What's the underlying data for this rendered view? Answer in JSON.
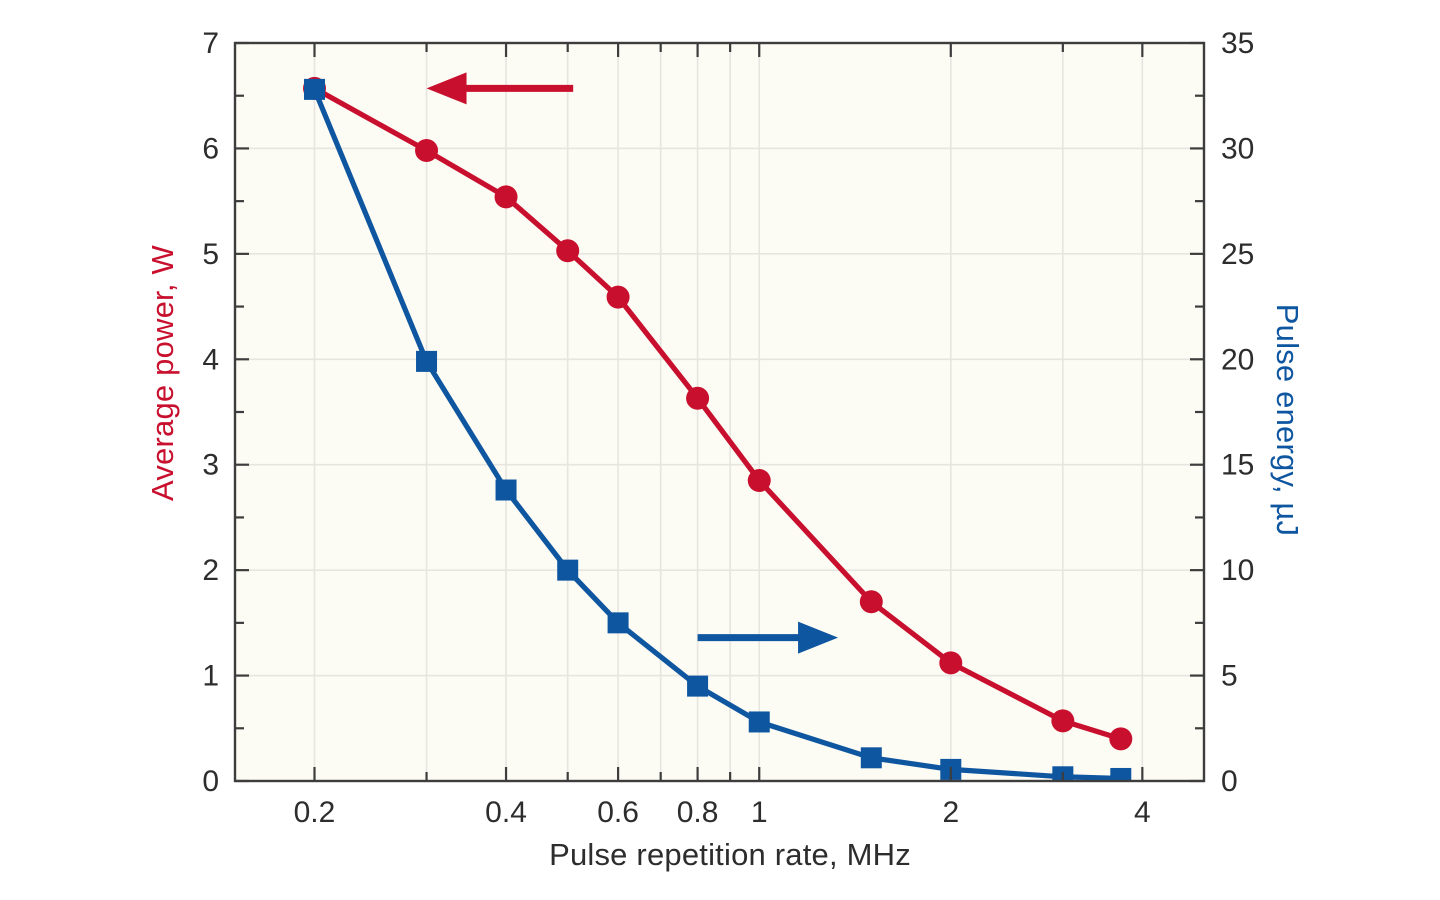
{
  "figure": {
    "background": "#ffffff",
    "plot_background": "#fcfbf4",
    "grid_color": "#e7e5e0",
    "frame_color": "#3d3d3d",
    "tick_color": "#3d3d3d",
    "tick_label_color": "#2d2d2d"
  },
  "chart_data": {
    "type": "line",
    "title": "",
    "xlabel": "Pulse repetition rate, MHz",
    "x_scale": "log",
    "x_range": [
      0.15,
      5.0
    ],
    "x_major_ticks": [
      0.2,
      0.4,
      0.6,
      0.8,
      1,
      2,
      4
    ],
    "x_major_tick_labels": [
      "0.2",
      "0.4",
      "0.6",
      "0.8",
      "1",
      "2",
      "4"
    ],
    "x_minor_ticks": [
      0.3,
      0.5,
      0.7,
      0.9,
      3
    ],
    "x_gridlines": [
      0.2,
      0.3,
      0.4,
      0.5,
      0.6,
      0.7,
      0.8,
      0.9,
      1,
      2,
      3,
      4
    ],
    "grid": true,
    "legend_position": "none",
    "left_axis": {
      "label": "Average power, W",
      "color": "#c8102e",
      "range": [
        0,
        7
      ],
      "major_ticks": [
        0,
        1,
        2,
        3,
        4,
        5,
        6,
        7
      ],
      "minor_ticks": [
        0.5,
        1.5,
        2.5,
        3.5,
        4.5,
        5.5,
        6.5
      ],
      "gridline_values": [
        1,
        2,
        3,
        4,
        5,
        6
      ]
    },
    "right_axis": {
      "label": "Pulse energy, µJ",
      "color": "#0f56a0",
      "range": [
        0,
        35
      ],
      "major_ticks": [
        0,
        5,
        10,
        15,
        20,
        25,
        30,
        35
      ],
      "minor_ticks": [
        2.5,
        7.5,
        12.5,
        17.5,
        22.5,
        27.5,
        32.5
      ]
    },
    "x": [
      0.2,
      0.3,
      0.4,
      0.5,
      0.6,
      0.8,
      1.0,
      1.5,
      2.0,
      3.0,
      3.7
    ],
    "series": [
      {
        "name": "Average power",
        "axis": "left",
        "color": "#c8102e",
        "marker": "circle",
        "values": [
          6.57,
          5.98,
          5.54,
          5.03,
          4.59,
          3.63,
          2.85,
          1.7,
          1.12,
          0.57,
          0.4
        ]
      },
      {
        "name": "Pulse energy",
        "axis": "right",
        "color": "#0f56a0",
        "marker": "square",
        "values": [
          32.8,
          19.9,
          13.8,
          10.0,
          7.5,
          4.5,
          2.8,
          1.1,
          0.55,
          0.2,
          0.12
        ]
      }
    ],
    "annotations": [
      {
        "type": "arrow",
        "points_to": "left-axis",
        "color": "#c8102e",
        "x_tail": 0.51,
        "x_tip": 0.3,
        "y_left": 6.57
      },
      {
        "type": "arrow",
        "points_to": "right-axis",
        "color": "#0f56a0",
        "x_tail": 0.8,
        "x_tip": 1.33,
        "y_left": 1.36
      }
    ]
  }
}
